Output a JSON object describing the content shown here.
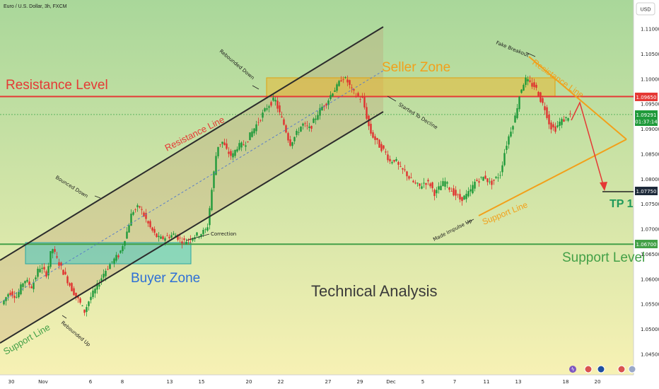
{
  "header": {
    "symbol_label": "Euro / U.S. Dollar, 3h, FXCM",
    "currency_button": "USD"
  },
  "colors": {
    "bg_top": "#a9d79a",
    "bg_bottom": "#f7f1b4",
    "up_candle": "#1f9a3a",
    "down_candle": "#e0312f",
    "resistance": "#e53935",
    "support": "#43a047",
    "seller_zone": "#f3b11c",
    "buyer_zone": "#47c9c4",
    "channel": "#2c2c2c",
    "triangle": "#f2a01a",
    "arrow": "#e53935"
  },
  "annotations": {
    "resistance_level": "Resistance Level",
    "support_level": "Support Level",
    "seller_zone": "Seller Zone",
    "buyer_zone": "Buyer Zone",
    "technical_analysis": "Technical Analysis",
    "resistance_line_channel": "Resistance Line",
    "support_line_channel": "Support Line",
    "resistance_line_triangle": "Resistance Line",
    "support_line_triangle": "Support Line",
    "tp1": "TP 1",
    "rebounded_down": "Rebounded Down",
    "bounced_down": "Bounced Down",
    "correction": "Correction",
    "rebounded_up": "Rebounded Up",
    "started_to_decline": "Started To Decline",
    "fake_breakout": "Fake Breakout",
    "made_impulse_up": "Made Impulse Up"
  },
  "price_labels": {
    "resistance": "1.09650",
    "current": "1.09291",
    "countdown": "01:37:14",
    "tp": "1.07750",
    "support": "1.06700"
  },
  "chart_data": {
    "type": "candlestick",
    "title": "Euro / U.S. Dollar, 3h, FXCM",
    "y_ticks": [
      "1.11000",
      "1.10500",
      "1.10000",
      "1.09500",
      "1.09000",
      "1.08500",
      "1.08000",
      "1.07500",
      "1.07000",
      "1.06500",
      "1.06000",
      "1.05500",
      "1.05000",
      "1.04500"
    ],
    "ylim": [
      1.0425,
      1.1165
    ],
    "x_ticks": [
      "30",
      "Nov",
      "6",
      "8",
      "13",
      "15",
      "20",
      "22",
      "27",
      "29",
      "Dec",
      "5",
      "7",
      "11",
      "13",
      "18",
      "20"
    ],
    "levels": {
      "resistance": 1.0965,
      "support": 1.067,
      "tp": 1.0775,
      "current": 1.09291
    },
    "price_path": [
      [
        0,
        1.055
      ],
      [
        3,
        1.0575
      ],
      [
        6,
        1.0565
      ],
      [
        9,
        1.06
      ],
      [
        12,
        1.0585
      ],
      [
        15,
        1.0625
      ],
      [
        18,
        1.061
      ],
      [
        20,
        1.0665
      ],
      [
        22,
        1.064
      ],
      [
        25,
        1.061
      ],
      [
        28,
        1.058
      ],
      [
        31,
        1.0555
      ],
      [
        33,
        1.0535
      ],
      [
        35,
        1.056
      ],
      [
        38,
        1.0585
      ],
      [
        41,
        1.0615
      ],
      [
        44,
        1.0635
      ],
      [
        47,
        1.065
      ],
      [
        50,
        1.0695
      ],
      [
        52,
        1.0735
      ],
      [
        55,
        1.0745
      ],
      [
        57,
        1.0725
      ],
      [
        59,
        1.0705
      ],
      [
        61,
        1.069
      ],
      [
        63,
        1.068
      ],
      [
        66,
        1.0685
      ],
      [
        69,
        1.069
      ],
      [
        71,
        1.068
      ],
      [
        73,
        1.0675
      ],
      [
        76,
        1.0685
      ],
      [
        79,
        1.069
      ],
      [
        82,
        1.07
      ],
      [
        84,
        1.0785
      ],
      [
        86,
        1.0865
      ],
      [
        88,
        1.0875
      ],
      [
        90,
        1.0855
      ],
      [
        92,
        1.0845
      ],
      [
        94,
        1.0865
      ],
      [
        97,
        1.087
      ],
      [
        100,
        1.0895
      ],
      [
        103,
        1.092
      ],
      [
        106,
        1.0945
      ],
      [
        109,
        1.096
      ],
      [
        111,
        1.093
      ],
      [
        113,
        1.0905
      ],
      [
        115,
        1.087
      ],
      [
        117,
        1.0885
      ],
      [
        120,
        1.091
      ],
      [
        123,
        1.09
      ],
      [
        126,
        1.093
      ],
      [
        128,
        1.0945
      ],
      [
        130,
        1.0955
      ],
      [
        132,
        1.0975
      ],
      [
        134,
        1.0985
      ],
      [
        136,
        1.1005
      ],
      [
        138,
        1.0995
      ],
      [
        140,
        1.0975
      ],
      [
        142,
        1.0965
      ],
      [
        144,
        1.096
      ],
      [
        145,
        1.094
      ],
      [
        147,
        1.0895
      ],
      [
        149,
        1.088
      ],
      [
        151,
        1.0865
      ],
      [
        153,
        1.0855
      ],
      [
        155,
        1.0835
      ],
      [
        157,
        1.084
      ],
      [
        159,
        1.082
      ],
      [
        161,
        1.0815
      ],
      [
        163,
        1.08
      ],
      [
        165,
        1.079
      ],
      [
        167,
        1.0785
      ],
      [
        169,
        1.0795
      ],
      [
        171,
        1.079
      ],
      [
        173,
        1.077
      ],
      [
        175,
        1.0785
      ],
      [
        177,
        1.0795
      ],
      [
        179,
        1.078
      ],
      [
        181,
        1.077
      ],
      [
        183,
        1.076
      ],
      [
        185,
        1.0765
      ],
      [
        187,
        1.0775
      ],
      [
        189,
        1.0795
      ],
      [
        191,
        1.08
      ],
      [
        193,
        1.0805
      ],
      [
        195,
        1.079
      ],
      [
        197,
        1.08
      ],
      [
        199,
        1.081
      ],
      [
        201,
        1.086
      ],
      [
        203,
        1.0895
      ],
      [
        205,
        1.0925
      ],
      [
        207,
        1.0975
      ],
      [
        209,
        1.1
      ],
      [
        211,
        1.099
      ],
      [
        213,
        1.0985
      ],
      [
        215,
        1.096
      ],
      [
        217,
        1.094
      ],
      [
        219,
        1.0905
      ],
      [
        221,
        1.09
      ],
      [
        223,
        1.0915
      ],
      [
        225,
        1.092
      ],
      [
        227,
        1.0929
      ]
    ]
  }
}
